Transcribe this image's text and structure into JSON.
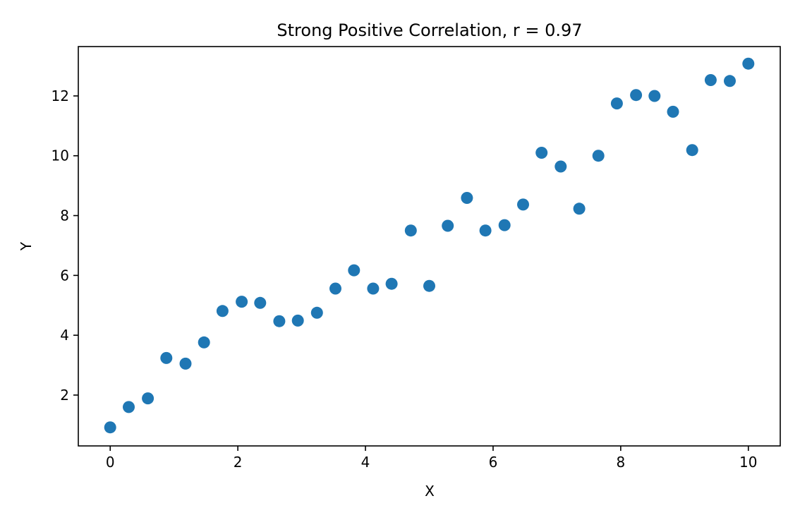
{
  "chart_data": {
    "type": "scatter",
    "title": "Strong Positive Correlation, r = 0.97",
    "xlabel": "X",
    "ylabel": "Y",
    "xlim": [
      -0.5,
      10.5
    ],
    "ylim": [
      0.3,
      13.65
    ],
    "x_ticks": [
      0,
      2,
      4,
      6,
      8,
      10
    ],
    "y_ticks": [
      2,
      4,
      6,
      8,
      10,
      12
    ],
    "grid": false,
    "marker_color": "#1f77b4",
    "series": [
      {
        "x": [
          0.0,
          0.29,
          0.59,
          0.88,
          1.18,
          1.47,
          1.76,
          2.06,
          2.35,
          2.65,
          2.94,
          3.24,
          3.53,
          3.82,
          4.12,
          4.41,
          4.71,
          5.0,
          5.29,
          5.59,
          5.88,
          6.18,
          6.47,
          6.76,
          7.06,
          7.35,
          7.65,
          7.94,
          8.24,
          8.53,
          8.82,
          9.12,
          9.41,
          9.71,
          10.0
        ],
        "y": [
          0.92,
          1.6,
          1.89,
          3.24,
          3.05,
          3.76,
          4.81,
          5.12,
          5.08,
          4.47,
          4.49,
          4.75,
          5.56,
          6.17,
          5.56,
          5.72,
          7.5,
          5.65,
          7.66,
          8.59,
          7.5,
          7.68,
          8.37,
          10.1,
          9.64,
          8.23,
          10.0,
          11.75,
          12.03,
          12.0,
          11.47,
          10.19,
          12.53,
          12.5,
          13.08
        ]
      }
    ]
  }
}
